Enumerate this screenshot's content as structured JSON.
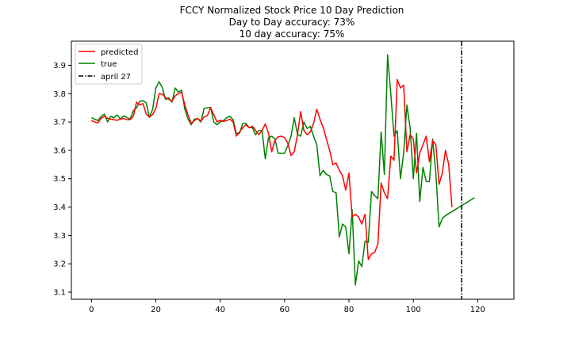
{
  "chart_data": {
    "type": "line",
    "title_lines": [
      "FCCY Normalized Stock Price 10 Day Prediction",
      "Day to Day accuracy: 73%",
      "10 day accuracy: 75%"
    ],
    "xlim": [
      -6.25,
      131.25
    ],
    "ylim": [
      3.075,
      3.985
    ],
    "x_ticks": [
      0,
      20,
      40,
      60,
      80,
      100,
      120
    ],
    "y_ticks": [
      3.1,
      3.2,
      3.3,
      3.4,
      3.5,
      3.6,
      3.7,
      3.8,
      3.9
    ],
    "grid": false,
    "legend_position": "top-left",
    "vline": {
      "x": 115,
      "label": "april 27",
      "color": "#000000",
      "style": "dashdot"
    },
    "series": [
      {
        "name": "predicted",
        "color": "#ff0000",
        "x_start": 0,
        "values": [
          3.705,
          3.7,
          3.697,
          3.713,
          3.72,
          3.713,
          3.71,
          3.708,
          3.706,
          3.71,
          3.713,
          3.708,
          3.708,
          3.72,
          3.77,
          3.76,
          3.765,
          3.728,
          3.718,
          3.726,
          3.748,
          3.8,
          3.798,
          3.786,
          3.78,
          3.773,
          3.792,
          3.8,
          3.805,
          3.76,
          3.725,
          3.695,
          3.705,
          3.713,
          3.703,
          3.718,
          3.722,
          3.75,
          3.726,
          3.7,
          3.706,
          3.702,
          3.705,
          3.71,
          3.7,
          3.65,
          3.665,
          3.68,
          3.69,
          3.68,
          3.685,
          3.67,
          3.655,
          3.67,
          3.693,
          3.66,
          3.595,
          3.635,
          3.648,
          3.65,
          3.645,
          3.625,
          3.582,
          3.595,
          3.655,
          3.737,
          3.67,
          3.655,
          3.665,
          3.695,
          3.745,
          3.71,
          3.68,
          3.64,
          3.6,
          3.55,
          3.555,
          3.53,
          3.51,
          3.46,
          3.52,
          3.365,
          3.375,
          3.365,
          3.34,
          3.375,
          3.215,
          3.235,
          3.24,
          3.27,
          3.485,
          3.45,
          3.43,
          3.58,
          3.565,
          3.85,
          3.82,
          3.83,
          3.595,
          3.655,
          3.64,
          3.52,
          3.59,
          3.62,
          3.65,
          3.56,
          3.635,
          3.62,
          3.48,
          3.52,
          3.6,
          3.55,
          3.4
        ]
      },
      {
        "name": "true",
        "color": "#008000",
        "x_start": 0,
        "values": [
          3.715,
          3.71,
          3.705,
          3.72,
          3.728,
          3.7,
          3.72,
          3.715,
          3.725,
          3.71,
          3.722,
          3.716,
          3.71,
          3.74,
          3.75,
          3.773,
          3.775,
          3.768,
          3.716,
          3.745,
          3.82,
          3.842,
          3.822,
          3.78,
          3.785,
          3.77,
          3.82,
          3.806,
          3.812,
          3.745,
          3.71,
          3.69,
          3.71,
          3.712,
          3.7,
          3.748,
          3.75,
          3.752,
          3.7,
          3.69,
          3.7,
          3.705,
          3.715,
          3.72,
          3.708,
          3.66,
          3.66,
          3.695,
          3.695,
          3.68,
          3.68,
          3.655,
          3.67,
          3.67,
          3.57,
          3.645,
          3.65,
          3.64,
          3.59,
          3.59,
          3.59,
          3.617,
          3.65,
          3.715,
          3.657,
          3.65,
          3.7,
          3.677,
          3.685,
          3.65,
          3.62,
          3.51,
          3.53,
          3.515,
          3.51,
          3.455,
          3.45,
          3.295,
          3.34,
          3.33,
          3.235,
          3.39,
          3.125,
          3.21,
          3.19,
          3.28,
          3.275,
          3.455,
          3.44,
          3.43,
          3.665,
          3.515,
          3.937,
          3.8,
          3.65,
          3.67,
          3.5,
          3.59,
          3.76,
          3.68,
          3.5,
          3.66,
          3.42,
          3.54,
          3.49,
          3.49,
          3.64,
          3.52,
          3.33,
          3.36,
          3.37,
          3.377,
          3.384,
          3.391,
          3.398,
          3.405,
          3.412,
          3.419,
          3.426,
          3.433
        ],
        "x_offsets_note": ""
      }
    ]
  }
}
